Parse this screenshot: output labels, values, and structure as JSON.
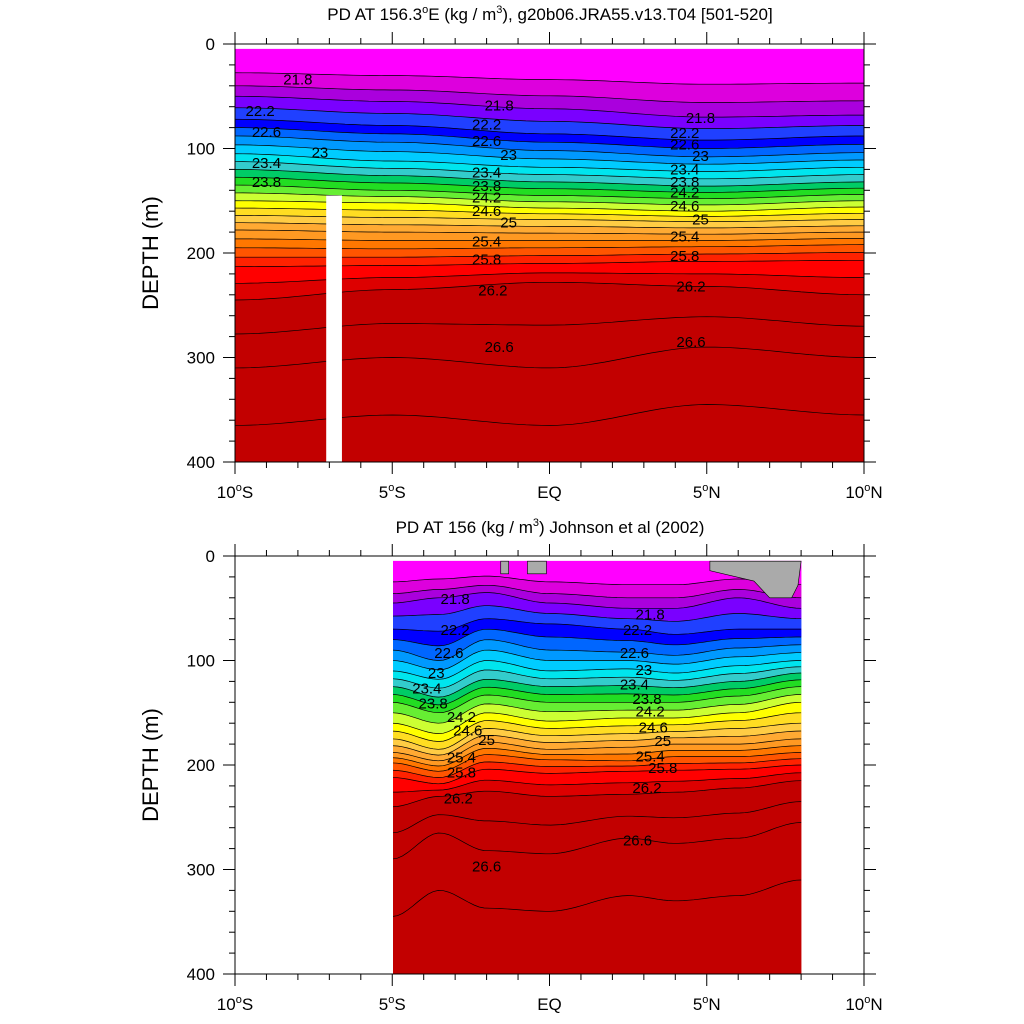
{
  "chart_data": [
    {
      "type": "contour",
      "title": "PD AT 156.3°E (kg / m³), g20b06.JRA55.v13.T04 [501-520]",
      "title_parts": {
        "main": "PD AT 156.3",
        "deg": "o",
        "unit_a": "E (kg / m",
        "sup": "3",
        "unit_b": "), g20b06.JRA55.v13.T04 [501-520]"
      },
      "xlabel": "",
      "ylabel": "DEPTH (m)",
      "xlim": [
        -10,
        10
      ],
      "ylim": [
        400,
        0
      ],
      "x_ticks": [
        {
          "value": -10,
          "label": "10",
          "deg": "o",
          "hemi": "S"
        },
        {
          "value": -5,
          "label": "5",
          "deg": "o",
          "hemi": "S"
        },
        {
          "value": 0,
          "label": "EQ",
          "deg": "",
          "hemi": ""
        },
        {
          "value": 5,
          "label": "5",
          "deg": "o",
          "hemi": "N"
        },
        {
          "value": 10,
          "label": "10",
          "deg": "o",
          "hemi": "N"
        }
      ],
      "y_ticks": [
        0,
        100,
        200,
        300,
        400
      ],
      "data_lon_range": [
        -10,
        10
      ],
      "data_depth_range": [
        5,
        400
      ],
      "missing_column": [
        -7.1,
        -6.6,
        145
      ],
      "contour_levels": [
        21.8,
        22.2,
        22.6,
        23,
        23.4,
        23.8,
        24.2,
        24.6,
        25,
        25.4,
        25.8,
        26.2,
        26.6
      ],
      "isopycnal_depths": {
        "lon": [
          -10,
          -5,
          0,
          5,
          10
        ],
        "21.8": [
          50,
          55,
          62,
          70,
          68
        ],
        "22.2": [
          72,
          78,
          86,
          92,
          88
        ],
        "22.6": [
          88,
          94,
          102,
          108,
          104
        ],
        "23": [
          105,
          112,
          118,
          122,
          118
        ],
        "23.4": [
          120,
          126,
          132,
          136,
          132
        ],
        "23.8": [
          135,
          140,
          145,
          148,
          144
        ],
        "24.2": [
          150,
          152,
          157,
          160,
          156
        ],
        "24.6": [
          164,
          166,
          168,
          170,
          168
        ],
        "25": [
          178,
          180,
          181,
          182,
          180
        ],
        "25.4": [
          195,
          196,
          195,
          194,
          192
        ],
        "25.8": [
          213,
          212,
          210,
          208,
          207
        ],
        "26.2": [
          245,
          235,
          228,
          232,
          240
        ],
        "26.6": [
          310,
          300,
          310,
          290,
          300
        ]
      },
      "labels": [
        {
          "text": "21.8",
          "lon": -8,
          "depth": 35
        },
        {
          "text": "21.8",
          "lon": -1.6,
          "depth": 60
        },
        {
          "text": "21.8",
          "lon": 4.8,
          "depth": 72
        },
        {
          "text": "22.2",
          "lon": -9.2,
          "depth": 65
        },
        {
          "text": "22.2",
          "lon": -2,
          "depth": 78
        },
        {
          "text": "22.2",
          "lon": 4.3,
          "depth": 86
        },
        {
          "text": "22.6",
          "lon": -9,
          "depth": 85
        },
        {
          "text": "22.6",
          "lon": -2,
          "depth": 94
        },
        {
          "text": "22.6",
          "lon": 4.3,
          "depth": 97
        },
        {
          "text": "23",
          "lon": -7.3,
          "depth": 105
        },
        {
          "text": "23",
          "lon": -1.3,
          "depth": 107
        },
        {
          "text": "23",
          "lon": 4.8,
          "depth": 108
        },
        {
          "text": "23.4",
          "lon": -9,
          "depth": 115
        },
        {
          "text": "23.4",
          "lon": -2,
          "depth": 124
        },
        {
          "text": "23.4",
          "lon": 4.3,
          "depth": 121
        },
        {
          "text": "23.8",
          "lon": -9,
          "depth": 133
        },
        {
          "text": "23.8",
          "lon": -2,
          "depth": 137
        },
        {
          "text": "23.8",
          "lon": 4.3,
          "depth": 133
        },
        {
          "text": "24.2",
          "lon": -2,
          "depth": 148
        },
        {
          "text": "24.2",
          "lon": 4.3,
          "depth": 143
        },
        {
          "text": "24.6",
          "lon": -2,
          "depth": 161
        },
        {
          "text": "24.6",
          "lon": 4.3,
          "depth": 156
        },
        {
          "text": "25",
          "lon": -1.3,
          "depth": 172
        },
        {
          "text": "25",
          "lon": 4.8,
          "depth": 169
        },
        {
          "text": "25.4",
          "lon": -2,
          "depth": 190
        },
        {
          "text": "25.4",
          "lon": 4.3,
          "depth": 185
        },
        {
          "text": "25.8",
          "lon": -2,
          "depth": 207
        },
        {
          "text": "25.8",
          "lon": 4.3,
          "depth": 204
        },
        {
          "text": "26.2",
          "lon": -1.8,
          "depth": 237
        },
        {
          "text": "26.2",
          "lon": 4.5,
          "depth": 233
        },
        {
          "text": "26.6",
          "lon": -1.6,
          "depth": 291
        },
        {
          "text": "26.6",
          "lon": 4.5,
          "depth": 286
        }
      ]
    },
    {
      "type": "contour",
      "title": "PD AT 156 (kg / m³) Johnson et al (2002)",
      "title_parts": {
        "main": "PD AT 156 (kg / m",
        "sup": "3",
        "unit_b": ") Johnson et al (2002)"
      },
      "xlabel": "",
      "ylabel": "DEPTH (m)",
      "xlim": [
        -10,
        10
      ],
      "ylim": [
        400,
        0
      ],
      "x_ticks": [
        {
          "value": -10,
          "label": "10",
          "deg": "o",
          "hemi": "S"
        },
        {
          "value": -5,
          "label": "5",
          "deg": "o",
          "hemi": "S"
        },
        {
          "value": 0,
          "label": "EQ",
          "deg": "",
          "hemi": ""
        },
        {
          "value": 5,
          "label": "5",
          "deg": "o",
          "hemi": "N"
        },
        {
          "value": 10,
          "label": "10",
          "deg": "o",
          "hemi": "N"
        }
      ],
      "y_ticks": [
        0,
        100,
        200,
        300,
        400
      ],
      "data_lon_range": [
        -5,
        8
      ],
      "data_depth_range": [
        5,
        400
      ],
      "contour_levels": [
        21.8,
        22.2,
        22.6,
        23,
        23.4,
        23.8,
        24.2,
        24.6,
        25,
        25.4,
        25.8,
        26.2,
        26.6
      ],
      "isopycnal_depths": {
        "lon": [
          -5,
          -3.5,
          -2,
          0,
          2.5,
          4,
          6,
          8
        ],
        "21.8": [
          45,
          40,
          35,
          45,
          50,
          50,
          40,
          50
        ],
        "22.2": [
          70,
          72,
          60,
          65,
          70,
          75,
          70,
          70
        ],
        "22.6": [
          90,
          100,
          80,
          90,
          92,
          95,
          88,
          85
        ],
        "23": [
          110,
          118,
          100,
          110,
          108,
          112,
          105,
          100
        ],
        "23.4": [
          125,
          135,
          118,
          125,
          124,
          126,
          120,
          112
        ],
        "23.8": [
          140,
          150,
          133,
          140,
          140,
          140,
          134,
          125
        ],
        "24.2": [
          160,
          170,
          150,
          158,
          155,
          155,
          150,
          140
        ],
        "24.6": [
          175,
          185,
          165,
          172,
          170,
          168,
          165,
          160
        ],
        "25": [
          188,
          196,
          178,
          185,
          183,
          180,
          180,
          175
        ],
        "25.4": [
          198,
          206,
          190,
          195,
          196,
          192,
          192,
          188
        ],
        "25.8": [
          212,
          218,
          204,
          208,
          206,
          205,
          204,
          200
        ],
        "26.2": [
          240,
          230,
          225,
          230,
          228,
          226,
          222,
          215
        ],
        "26.6": [
          290,
          265,
          282,
          285,
          270,
          275,
          270,
          255
        ]
      },
      "labels": [
        {
          "text": "21.8",
          "lon": -3,
          "depth": 42
        },
        {
          "text": "21.8",
          "lon": 3.2,
          "depth": 57
        },
        {
          "text": "22.2",
          "lon": -3,
          "depth": 72
        },
        {
          "text": "22.2",
          "lon": 2.8,
          "depth": 72
        },
        {
          "text": "22.6",
          "lon": -3.2,
          "depth": 94
        },
        {
          "text": "22.6",
          "lon": 2.7,
          "depth": 94
        },
        {
          "text": "23",
          "lon": -3.6,
          "depth": 113
        },
        {
          "text": "23",
          "lon": 3,
          "depth": 110
        },
        {
          "text": "23.4",
          "lon": -3.9,
          "depth": 128
        },
        {
          "text": "23.4",
          "lon": 2.7,
          "depth": 124
        },
        {
          "text": "23.8",
          "lon": -3.7,
          "depth": 142
        },
        {
          "text": "23.8",
          "lon": 3.1,
          "depth": 138
        },
        {
          "text": "24.2",
          "lon": -2.8,
          "depth": 155
        },
        {
          "text": "24.2",
          "lon": 3.2,
          "depth": 150
        },
        {
          "text": "24.6",
          "lon": -2.6,
          "depth": 168
        },
        {
          "text": "24.6",
          "lon": 3.3,
          "depth": 165
        },
        {
          "text": "25",
          "lon": -2,
          "depth": 177
        },
        {
          "text": "25",
          "lon": 3.6,
          "depth": 178
        },
        {
          "text": "25.4",
          "lon": -2.8,
          "depth": 194
        },
        {
          "text": "25.4",
          "lon": 3.2,
          "depth": 193
        },
        {
          "text": "25.8",
          "lon": -2.8,
          "depth": 208
        },
        {
          "text": "25.8",
          "lon": 3.6,
          "depth": 204
        },
        {
          "text": "26.2",
          "lon": -2.9,
          "depth": 233
        },
        {
          "text": "26.2",
          "lon": 3.1,
          "depth": 223
        },
        {
          "text": "26.6",
          "lon": -2,
          "depth": 298
        },
        {
          "text": "26.6",
          "lon": 2.8,
          "depth": 273
        }
      ]
    }
  ],
  "colors": {
    "bands": [
      "#ff00ff",
      "#dd00dd",
      "#aa00dd",
      "#7a00ff",
      "#2040ff",
      "#0000ff",
      "#0066ff",
      "#0099ff",
      "#00ccff",
      "#00e5ee",
      "#33cccc",
      "#00cc66",
      "#22dd22",
      "#66ee33",
      "#ccff33",
      "#ffff00",
      "#ffdd22",
      "#ffcc44",
      "#ffaa33",
      "#ff9922",
      "#ff7700",
      "#ff5500",
      "#ff2200",
      "#ff0000",
      "#dd0000",
      "#c20000"
    ],
    "missing": "#aaaaaa"
  }
}
